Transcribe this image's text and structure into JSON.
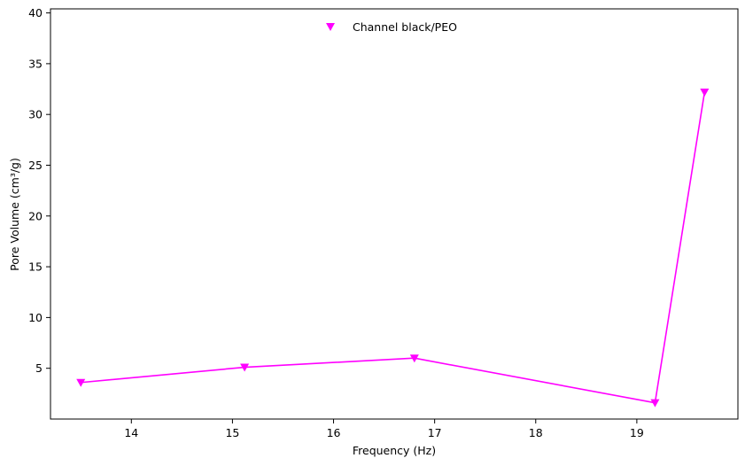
{
  "chart_data": {
    "type": "line",
    "title": "",
    "xlabel": "Frequency (Hz)",
    "ylabel": "Pore Volume (cm³/g)",
    "xlim": [
      13.2,
      20.0
    ],
    "ylim": [
      0.0,
      40.4
    ],
    "xticks": [
      14,
      15,
      16,
      17,
      18,
      19
    ],
    "yticks": [
      5,
      10,
      15,
      20,
      25,
      30,
      35,
      40
    ],
    "grid": false,
    "legend_position": "top-center",
    "series": [
      {
        "name": "Channel black/PEO",
        "color": "#ff00ff",
        "marker": "triangle-down",
        "x": [
          13.5,
          15.12,
          16.8,
          19.18,
          19.67
        ],
        "y": [
          3.6,
          5.1,
          6.0,
          1.6,
          32.2
        ]
      }
    ]
  }
}
